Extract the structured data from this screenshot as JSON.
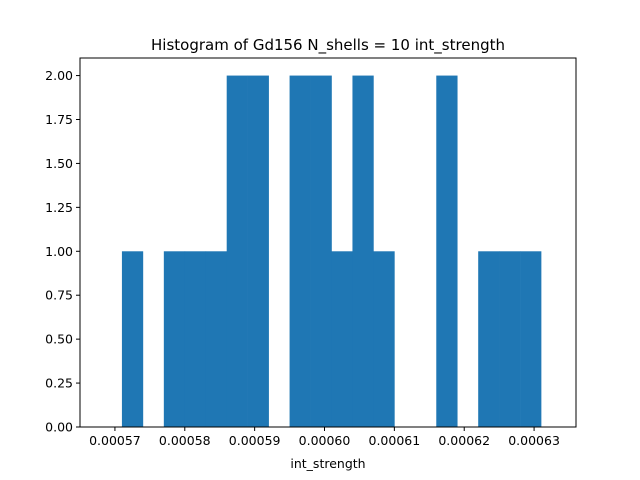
{
  "chart_data": {
    "type": "bar",
    "title": "Histogram of Gd156 N_shells = 10 int_strength",
    "xlabel": "int_strength",
    "ylabel": "",
    "xlim": [
      0.000565,
      0.000636
    ],
    "ylim": [
      0,
      2.1
    ],
    "grid": false,
    "bar_color": "#1f77b4",
    "bin_edges": [
      0.000571,
      0.000574,
      0.000577,
      0.00058,
      0.000583,
      0.000586,
      0.000589,
      0.000592,
      0.000595,
      0.000598,
      0.000601,
      0.000604,
      0.000607,
      0.00061,
      0.000613,
      0.000616,
      0.000619,
      0.000622,
      0.000625,
      0.000628,
      0.000631
    ],
    "counts": [
      1,
      0,
      1,
      1,
      1,
      2,
      2,
      0,
      2,
      2,
      1,
      2,
      1,
      0,
      0,
      2,
      0,
      1,
      1,
      1
    ],
    "x_ticks": [
      {
        "value": 0.00057,
        "label": "0.00057"
      },
      {
        "value": 0.00058,
        "label": "0.00058"
      },
      {
        "value": 0.00059,
        "label": "0.00059"
      },
      {
        "value": 0.0006,
        "label": "0.00060"
      },
      {
        "value": 0.00061,
        "label": "0.00061"
      },
      {
        "value": 0.00062,
        "label": "0.00062"
      },
      {
        "value": 0.00063,
        "label": "0.00063"
      }
    ],
    "y_ticks": [
      {
        "value": 0,
        "label": "0.00"
      },
      {
        "value": 0.25,
        "label": "0.25"
      },
      {
        "value": 0.5,
        "label": "0.50"
      },
      {
        "value": 0.75,
        "label": "0.75"
      },
      {
        "value": 1.0,
        "label": "1.00"
      },
      {
        "value": 1.25,
        "label": "1.25"
      },
      {
        "value": 1.5,
        "label": "1.50"
      },
      {
        "value": 1.75,
        "label": "1.75"
      },
      {
        "value": 2.0,
        "label": "2.00"
      }
    ]
  }
}
